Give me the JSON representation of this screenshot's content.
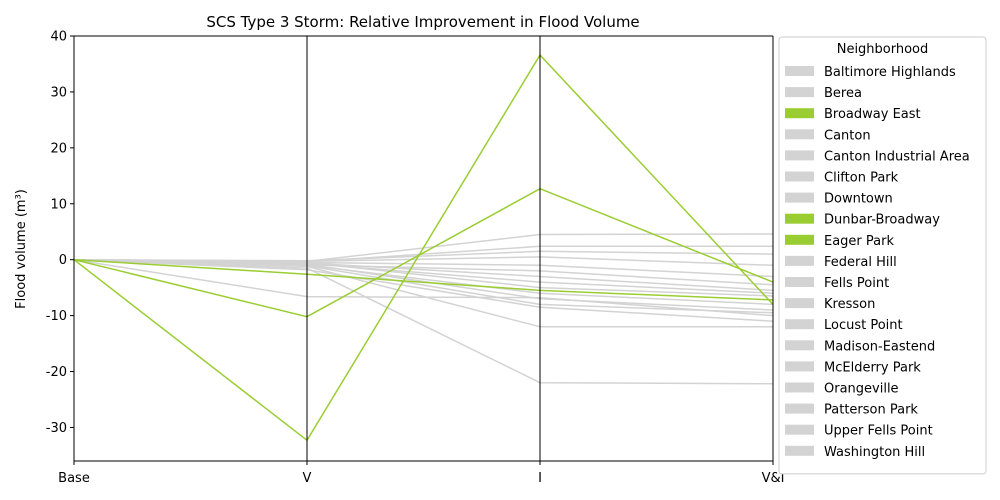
{
  "chart_data": {
    "type": "line",
    "title": "SCS Type 3 Storm: Relative Improvement in Flood Volume",
    "ylabel": "Flood volume (m³)",
    "xlabel": "",
    "categories": [
      "Base",
      "V",
      "I",
      "V&I"
    ],
    "ylim": [
      -36,
      40
    ],
    "yticks": [
      40,
      30,
      20,
      10,
      0,
      -10,
      -20,
      -30
    ],
    "grid": false,
    "legend": {
      "title": "Neighborhood",
      "position": "right, outside plot"
    },
    "colors": {
      "highlight": "#9acd32",
      "other": "#d3d3d3",
      "axis": "#000000"
    },
    "series": [
      {
        "name": "Baltimore Highlands",
        "highlight": false,
        "values": [
          0,
          -0.3,
          4.5,
          4.6
        ]
      },
      {
        "name": "Berea",
        "highlight": false,
        "values": [
          0,
          -0.5,
          -5.0,
          -6.5
        ]
      },
      {
        "name": "Broadway East",
        "highlight": true,
        "values": [
          0,
          -32.3,
          36.6,
          -8.0
        ]
      },
      {
        "name": "Canton",
        "highlight": false,
        "values": [
          0,
          -1.5,
          -22.0,
          -22.2
        ]
      },
      {
        "name": "Canton Industrial Area",
        "highlight": false,
        "values": [
          0,
          -1.2,
          -12.0,
          -12.0
        ]
      },
      {
        "name": "Clifton Park",
        "highlight": false,
        "values": [
          0,
          -6.6,
          -6.8,
          -10.0
        ]
      },
      {
        "name": "Downtown",
        "highlight": false,
        "values": [
          0,
          -1.8,
          -8.5,
          -11.0
        ]
      },
      {
        "name": "Dunbar-Broadway",
        "highlight": true,
        "values": [
          0,
          -10.2,
          12.7,
          -4.0
        ]
      },
      {
        "name": "Eager Park",
        "highlight": true,
        "values": [
          0,
          -2.6,
          -5.5,
          -7.2
        ]
      },
      {
        "name": "Federal Hill",
        "highlight": false,
        "values": [
          0,
          -0.4,
          2.4,
          2.4
        ]
      },
      {
        "name": "Fells Point",
        "highlight": false,
        "values": [
          0,
          -0.8,
          -7.0,
          -9.0
        ]
      },
      {
        "name": "Kresson",
        "highlight": false,
        "values": [
          0,
          -0.2,
          1.5,
          1.0
        ]
      },
      {
        "name": "Locust Point",
        "highlight": false,
        "values": [
          0,
          -0.6,
          -3.0,
          -5.5
        ]
      },
      {
        "name": "Madison-Eastend",
        "highlight": false,
        "values": [
          0,
          -1.0,
          -6.0,
          -8.0
        ]
      },
      {
        "name": "McElderry Park",
        "highlight": false,
        "values": [
          0,
          -0.7,
          -4.0,
          -6.0
        ]
      },
      {
        "name": "Orangeville",
        "highlight": false,
        "values": [
          0,
          -0.3,
          0.5,
          -1.0
        ]
      },
      {
        "name": "Patterson Park",
        "highlight": false,
        "values": [
          0,
          -0.9,
          -2.0,
          -4.5
        ]
      },
      {
        "name": "Upper Fells Point",
        "highlight": false,
        "values": [
          0,
          -1.1,
          -8.0,
          -9.5
        ]
      },
      {
        "name": "Washington Hill",
        "highlight": false,
        "values": [
          0,
          -0.5,
          -1.0,
          -3.0
        ]
      }
    ]
  }
}
